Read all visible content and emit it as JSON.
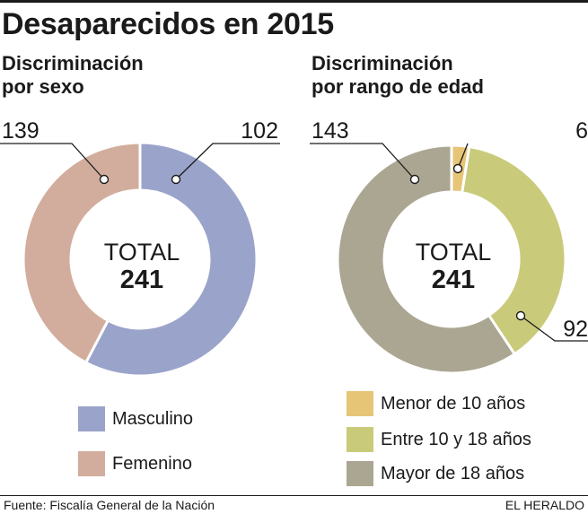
{
  "title": "Desaparecidos en 2015",
  "charts": {
    "sex": {
      "heading_line1": "Discriminación",
      "heading_line2": "por sexo",
      "center_label": "TOTAL",
      "center_value": "241"
    },
    "age": {
      "heading_line1": "Discriminación",
      "heading_line2": "por rango de edad",
      "center_label": "TOTAL",
      "center_value": "241"
    }
  },
  "legend_sex": [
    {
      "label": "Masculino",
      "color": "#9aa3c9"
    },
    {
      "label": "Femenino",
      "color": "#d2ad9e"
    }
  ],
  "legend_age": [
    {
      "label": "Menor de 10 años",
      "color": "#e7c577"
    },
    {
      "label": "Entre 10 y 18 años",
      "color": "#c9cb7b"
    },
    {
      "label": "Mayor de 18 años",
      "color": "#aba692"
    }
  ],
  "footer": {
    "source": "Fuente: Fiscalía General de la Nación",
    "brand": "EL HERALDO"
  },
  "chart_data": [
    {
      "type": "pie",
      "title": "Discriminación por sexo",
      "categories": [
        "Masculino",
        "Femenino"
      ],
      "values": [
        139,
        102
      ],
      "colors": [
        "#9aa3c9",
        "#d2ad9e"
      ],
      "total": 241,
      "legend": "bottom"
    },
    {
      "type": "pie",
      "title": "Discriminación por rango de edad",
      "categories": [
        "Menor de 10 años",
        "Entre 10 y 18 años",
        "Mayor de 18 años"
      ],
      "values": [
        6,
        92,
        143
      ],
      "colors": [
        "#e7c577",
        "#c9cb7b",
        "#aba692"
      ],
      "total": 241,
      "legend": "bottom"
    }
  ]
}
